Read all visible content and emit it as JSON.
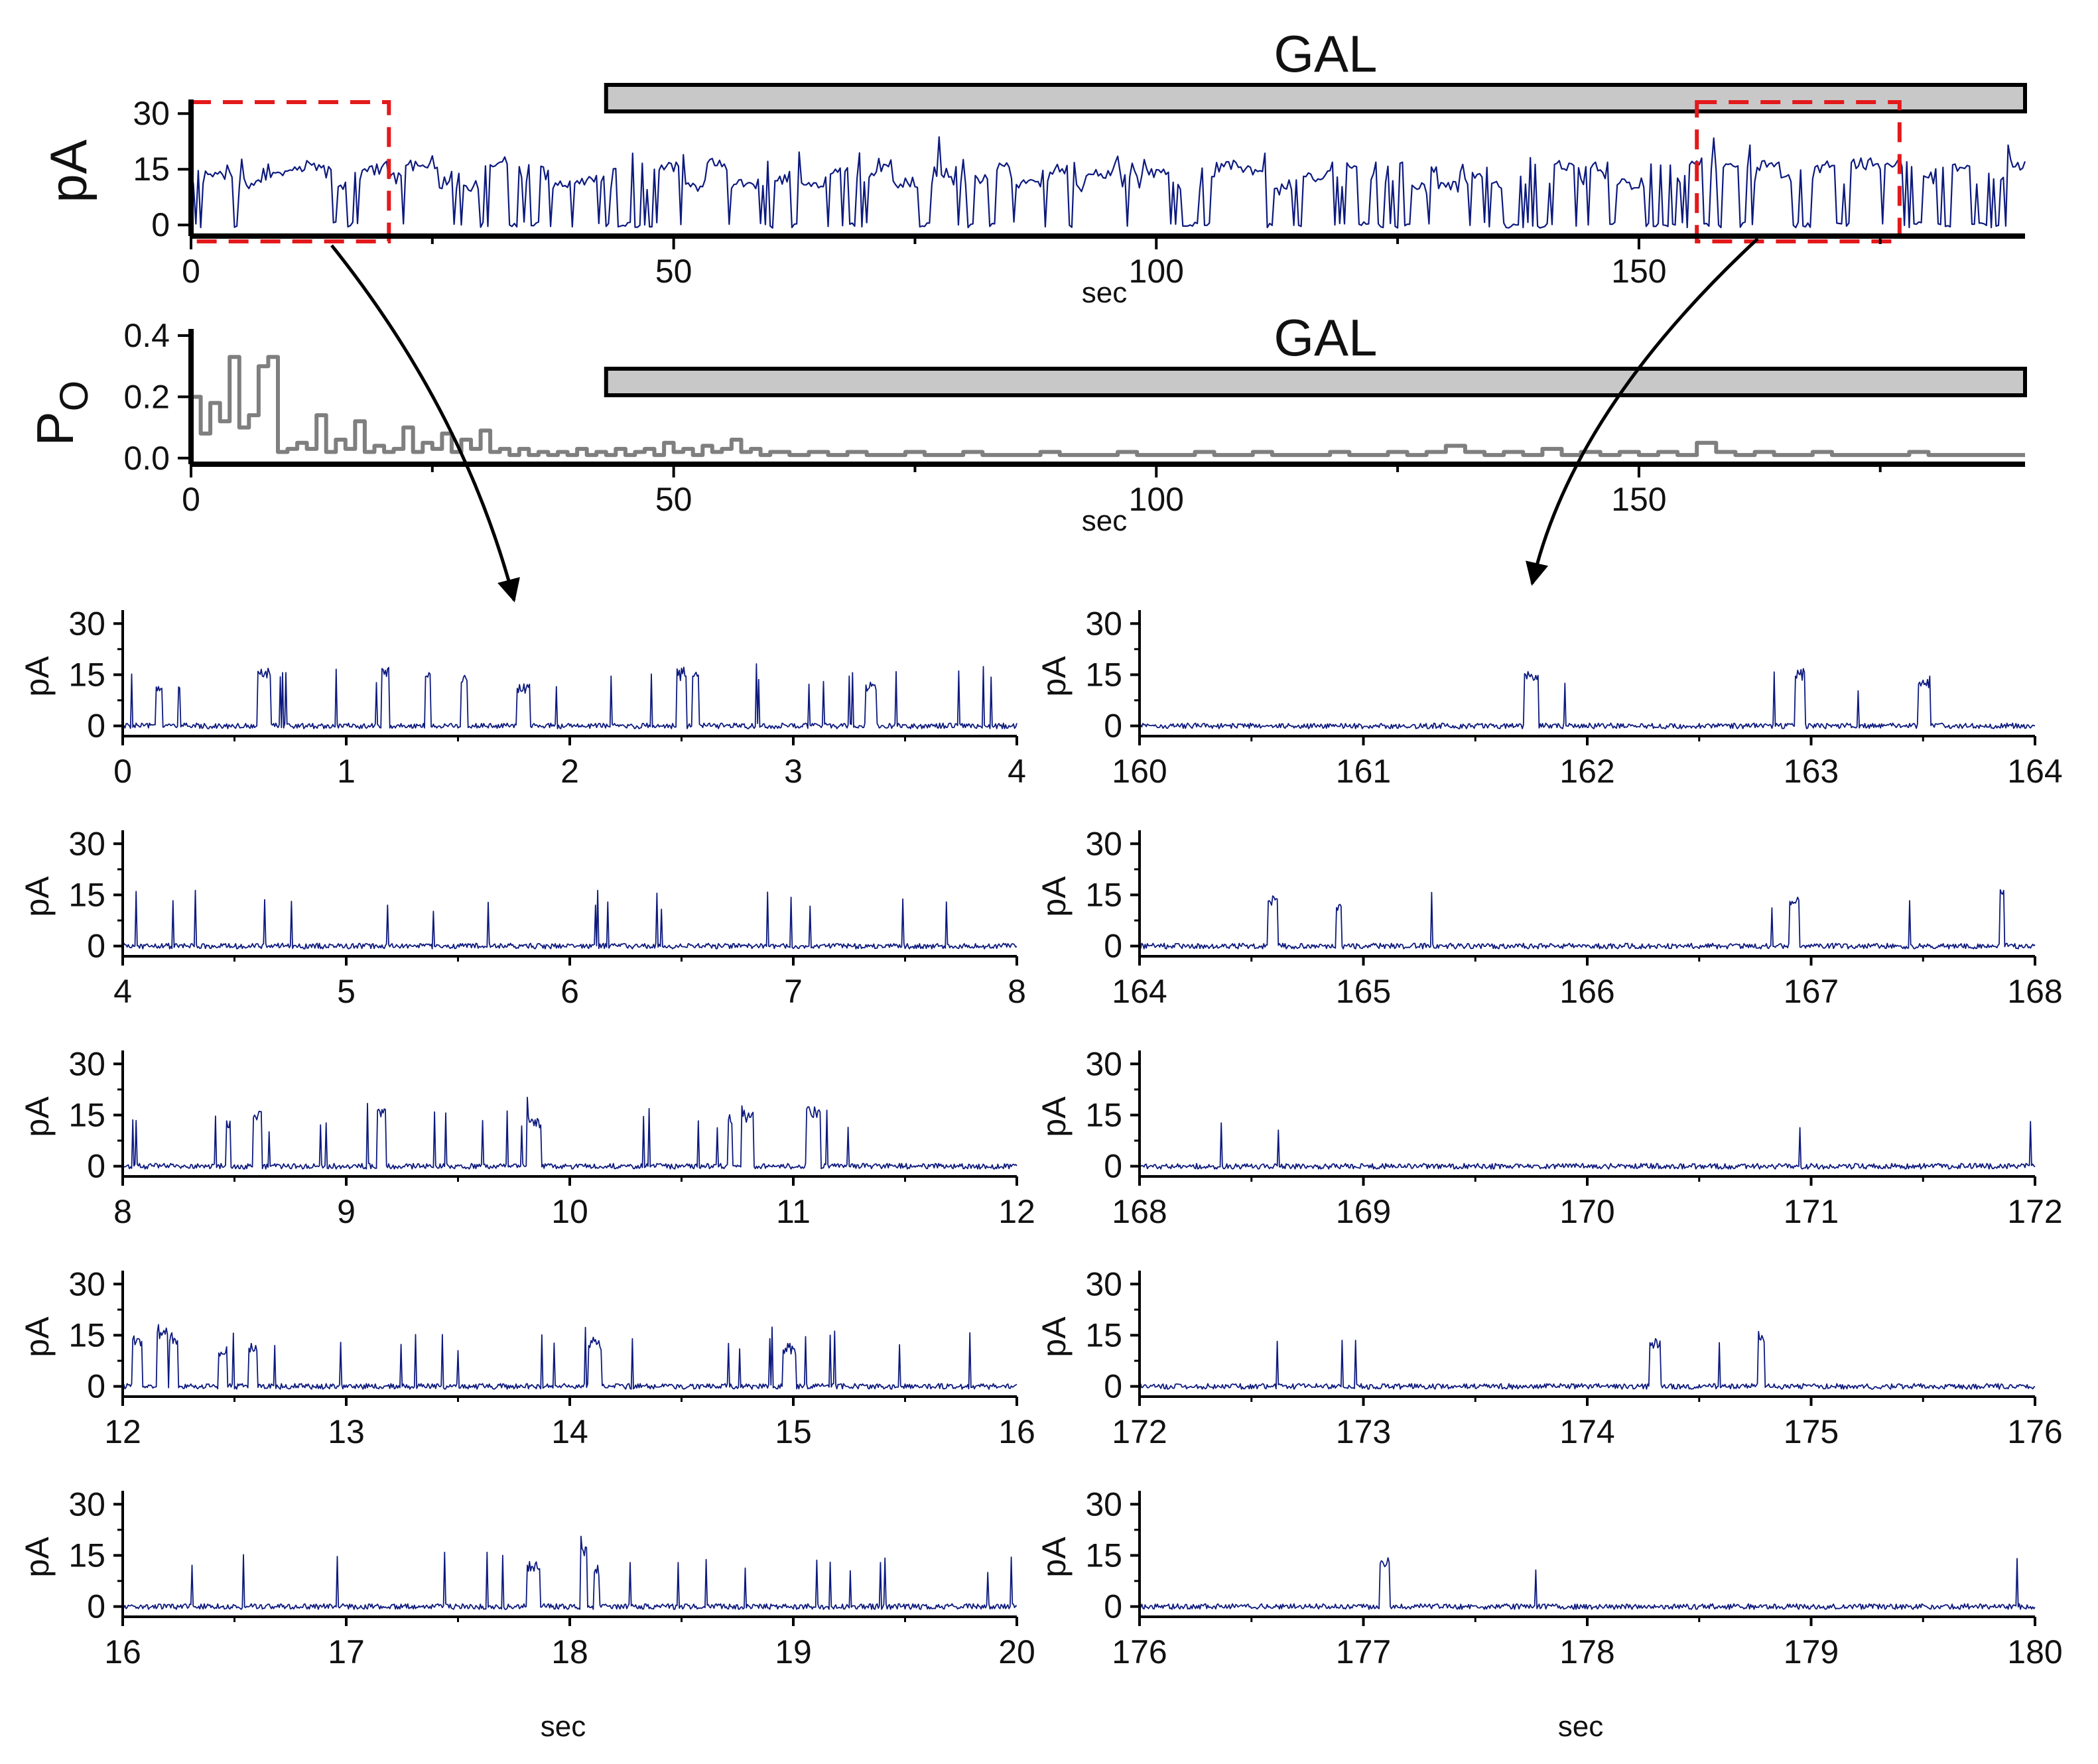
{
  "colors": {
    "trace": "#0d1a7e",
    "po_trace": "#7f7f7f",
    "gal_bar_fill": "#c8c8c8",
    "gal_bar_stroke": "#000000",
    "zoom_box": "#e3191b",
    "axis": "#000000"
  },
  "chart_data": [
    {
      "id": "top-current",
      "type": "line",
      "ylabel": "pA",
      "xlabel": "sec",
      "xlim": [
        0,
        190
      ],
      "ylim": [
        -3,
        32
      ],
      "xticks": [
        0,
        50,
        100,
        150
      ],
      "yticks": [
        0,
        15,
        30
      ],
      "treatment": {
        "label": "GAL",
        "start": 43,
        "end": 190
      },
      "zoom_windows": [
        {
          "start": 0,
          "end": 20.5
        },
        {
          "start": 156,
          "end": 177
        }
      ],
      "series": [
        {
          "sample_step_sec": 0.25,
          "values": []
        }
      ]
    },
    {
      "id": "top-po",
      "type": "line",
      "ylabel": "P",
      "ylabel_sub": "O",
      "xlabel": "sec",
      "xlim": [
        0,
        190
      ],
      "ylim": [
        -0.02,
        0.4
      ],
      "xticks": [
        0,
        50,
        100,
        150
      ],
      "yticks": [
        0.0,
        0.2,
        0.4
      ],
      "ytick_labels": [
        "0.0",
        "0.2",
        "0.4"
      ],
      "treatment": {
        "label": "GAL",
        "start": 43,
        "end": 190
      },
      "series": [
        {
          "x": [
            0,
            1,
            2,
            3,
            4,
            5,
            6,
            7,
            8,
            9,
            10,
            11,
            12,
            13,
            14,
            15,
            16,
            17,
            18,
            19,
            20,
            21,
            22,
            23,
            24,
            25,
            26,
            27,
            28,
            29,
            30,
            31,
            32,
            33,
            34,
            35,
            36,
            37,
            38,
            39,
            40,
            41,
            42,
            43,
            44,
            45,
            46,
            47,
            48,
            49,
            50,
            51,
            52,
            53,
            54,
            55,
            56,
            57,
            58,
            59,
            60,
            62,
            64,
            66,
            68,
            70,
            72,
            74,
            76,
            78,
            80,
            82,
            84,
            86,
            88,
            90,
            92,
            94,
            96,
            98,
            100,
            102,
            104,
            106,
            108,
            110,
            112,
            114,
            116,
            118,
            120,
            122,
            124,
            126,
            128,
            130,
            132,
            134,
            136,
            138,
            140,
            142,
            144,
            146,
            148,
            150,
            152,
            154,
            156,
            158,
            160,
            162,
            164,
            166,
            168,
            170,
            172,
            174,
            176,
            178,
            180,
            182,
            184,
            186,
            188
          ],
          "y": [
            0.2,
            0.08,
            0.18,
            0.12,
            0.33,
            0.1,
            0.14,
            0.3,
            0.33,
            0.02,
            0.03,
            0.05,
            0.03,
            0.14,
            0.02,
            0.06,
            0.03,
            0.12,
            0.02,
            0.04,
            0.02,
            0.03,
            0.1,
            0.02,
            0.05,
            0.03,
            0.08,
            0.02,
            0.06,
            0.03,
            0.09,
            0.02,
            0.03,
            0.01,
            0.03,
            0.01,
            0.02,
            0.01,
            0.02,
            0.01,
            0.03,
            0.01,
            0.02,
            0.01,
            0.03,
            0.01,
            0.02,
            0.03,
            0.01,
            0.05,
            0.02,
            0.03,
            0.01,
            0.04,
            0.02,
            0.03,
            0.06,
            0.02,
            0.03,
            0.01,
            0.02,
            0.01,
            0.02,
            0.01,
            0.02,
            0.01,
            0.01,
            0.02,
            0.01,
            0.01,
            0.02,
            0.01,
            0.01,
            0.01,
            0.02,
            0.01,
            0.01,
            0.01,
            0.02,
            0.01,
            0.01,
            0.01,
            0.02,
            0.01,
            0.01,
            0.02,
            0.01,
            0.01,
            0.01,
            0.02,
            0.01,
            0.01,
            0.02,
            0.01,
            0.02,
            0.04,
            0.02,
            0.01,
            0.02,
            0.01,
            0.03,
            0.01,
            0.02,
            0.01,
            0.02,
            0.01,
            0.02,
            0.01,
            0.05,
            0.02,
            0.01,
            0.02,
            0.01,
            0.01,
            0.02,
            0.01,
            0.01,
            0.01,
            0.01,
            0.02,
            0.01,
            0.01,
            0.01,
            0.01,
            0.01
          ]
        }
      ]
    },
    {
      "id": "zoom-L1",
      "type": "line",
      "ylabel": "pA",
      "xlabel": "",
      "xlim": [
        0,
        4
      ],
      "ylim": [
        -3,
        32
      ],
      "xticks": [
        0,
        1,
        2,
        3,
        4
      ],
      "yticks": [
        0,
        15,
        30
      ],
      "series": [
        {
          "sample_step_sec": 0.005,
          "values": []
        }
      ]
    },
    {
      "id": "zoom-L2",
      "type": "line",
      "ylabel": "pA",
      "xlabel": "",
      "xlim": [
        4,
        8
      ],
      "ylim": [
        -3,
        32
      ],
      "xticks": [
        4,
        5,
        6,
        7,
        8
      ],
      "yticks": [
        0,
        15,
        30
      ],
      "series": [
        {
          "sample_step_sec": 0.005,
          "values": []
        }
      ]
    },
    {
      "id": "zoom-L3",
      "type": "line",
      "ylabel": "pA",
      "xlabel": "",
      "xlim": [
        8,
        12
      ],
      "ylim": [
        -3,
        32
      ],
      "xticks": [
        8,
        9,
        10,
        11,
        12
      ],
      "yticks": [
        0,
        15,
        30
      ],
      "series": [
        {
          "sample_step_sec": 0.005,
          "values": []
        }
      ]
    },
    {
      "id": "zoom-L4",
      "type": "line",
      "ylabel": "pA",
      "xlabel": "",
      "xlim": [
        12,
        16
      ],
      "ylim": [
        -3,
        32
      ],
      "xticks": [
        12,
        13,
        14,
        15,
        16
      ],
      "yticks": [
        0,
        15,
        30
      ],
      "series": [
        {
          "sample_step_sec": 0.005,
          "values": []
        }
      ]
    },
    {
      "id": "zoom-L5",
      "type": "line",
      "ylabel": "pA",
      "xlabel": "sec",
      "xlim": [
        16,
        20
      ],
      "ylim": [
        -3,
        32
      ],
      "xticks": [
        16,
        17,
        18,
        19,
        20
      ],
      "yticks": [
        0,
        15,
        30
      ],
      "series": [
        {
          "sample_step_sec": 0.005,
          "values": []
        }
      ]
    },
    {
      "id": "zoom-R1",
      "type": "line",
      "ylabel": "pA",
      "xlabel": "",
      "xlim": [
        160,
        164
      ],
      "ylim": [
        -3,
        32
      ],
      "xticks": [
        160,
        161,
        162,
        163,
        164
      ],
      "yticks": [
        0,
        15,
        30
      ],
      "series": [
        {
          "sample_step_sec": 0.005,
          "values": []
        }
      ]
    },
    {
      "id": "zoom-R2",
      "type": "line",
      "ylabel": "pA",
      "xlabel": "",
      "xlim": [
        164,
        168
      ],
      "ylim": [
        -3,
        32
      ],
      "xticks": [
        164,
        165,
        166,
        167,
        168
      ],
      "yticks": [
        0,
        15,
        30
      ],
      "series": [
        {
          "sample_step_sec": 0.005,
          "values": []
        }
      ]
    },
    {
      "id": "zoom-R3",
      "type": "line",
      "ylabel": "pA",
      "xlabel": "",
      "xlim": [
        168,
        172
      ],
      "ylim": [
        -3,
        32
      ],
      "xticks": [
        168,
        169,
        170,
        171,
        172
      ],
      "yticks": [
        0,
        15,
        30
      ],
      "series": [
        {
          "sample_step_sec": 0.005,
          "values": []
        }
      ]
    },
    {
      "id": "zoom-R4",
      "type": "line",
      "ylabel": "pA",
      "xlabel": "",
      "xlim": [
        172,
        176
      ],
      "ylim": [
        -3,
        32
      ],
      "xticks": [
        172,
        173,
        174,
        175,
        176
      ],
      "yticks": [
        0,
        15,
        30
      ],
      "series": [
        {
          "sample_step_sec": 0.005,
          "values": []
        }
      ]
    },
    {
      "id": "zoom-R5",
      "type": "line",
      "ylabel": "pA",
      "xlabel": "sec",
      "xlim": [
        176,
        180
      ],
      "ylim": [
        -3,
        32
      ],
      "xticks": [
        176,
        177,
        178,
        179,
        180
      ],
      "yticks": [
        0,
        15,
        30
      ],
      "series": [
        {
          "sample_step_sec": 0.005,
          "values": []
        }
      ]
    }
  ]
}
